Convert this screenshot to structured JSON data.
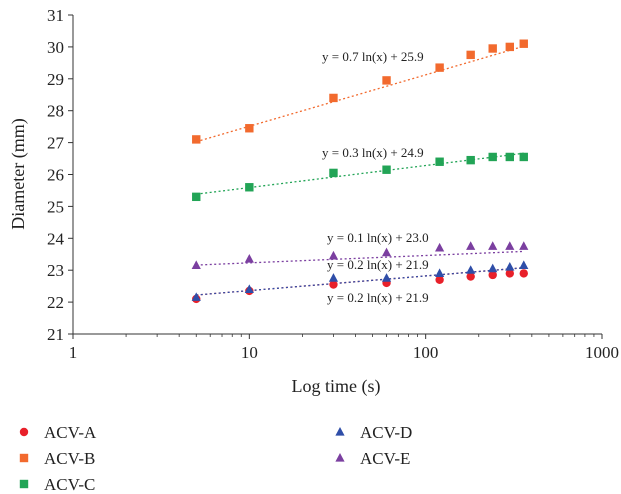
{
  "chart_data": {
    "type": "scatter",
    "title": "",
    "xlabel": "Log time (s)",
    "ylabel": "Diameter (mm)",
    "x_scale": "log",
    "xlim": [
      1,
      1000
    ],
    "ylim": [
      21,
      31
    ],
    "x_ticks": [
      "1",
      "10",
      "100",
      "1000"
    ],
    "y_ticks": [
      "21",
      "22",
      "23",
      "24",
      "25",
      "26",
      "27",
      "28",
      "29",
      "30",
      "31"
    ],
    "grid": false,
    "legend_position": "bottom",
    "series": [
      {
        "name": "ACV-A",
        "marker": "circle",
        "color": "#e8202a",
        "x": [
          5,
          10,
          30,
          60,
          120,
          180,
          240,
          300,
          360
        ],
        "y": [
          22.1,
          22.35,
          22.55,
          22.6,
          22.7,
          22.8,
          22.85,
          22.9,
          22.9
        ],
        "trend": {
          "a": 0.2,
          "b": 21.9,
          "label": "y = 0.2 ln(x) + 21.9"
        }
      },
      {
        "name": "ACV-B",
        "marker": "square",
        "color": "#f26a2e",
        "x": [
          5,
          10,
          30,
          60,
          120,
          180,
          240,
          300,
          360
        ],
        "y": [
          27.1,
          27.45,
          28.4,
          28.95,
          29.35,
          29.75,
          29.95,
          30.0,
          30.1
        ],
        "trend": {
          "a": 0.7,
          "b": 25.9,
          "label": "y = 0.7 ln(x) + 25.9"
        }
      },
      {
        "name": "ACV-C",
        "marker": "square",
        "color": "#22a456",
        "x": [
          5,
          10,
          30,
          60,
          120,
          180,
          240,
          300,
          360
        ],
        "y": [
          25.3,
          25.6,
          26.05,
          26.15,
          26.4,
          26.45,
          26.55,
          26.55,
          26.55
        ],
        "trend": {
          "a": 0.3,
          "b": 24.9,
          "label": "y = 0.3 ln(x) + 24.9"
        }
      },
      {
        "name": "ACV-D",
        "marker": "triangle",
        "color": "#2f4ea8",
        "x": [
          5,
          10,
          30,
          60,
          120,
          180,
          240,
          300,
          360
        ],
        "y": [
          22.15,
          22.4,
          22.75,
          22.75,
          22.9,
          23.0,
          23.05,
          23.1,
          23.15
        ],
        "trend": {
          "a": 0.2,
          "b": 21.9,
          "label": "y = 0.2 ln(x) + 21.9"
        }
      },
      {
        "name": "ACV-E",
        "marker": "triangle",
        "color": "#7b3fa0",
        "x": [
          5,
          10,
          30,
          60,
          120,
          180,
          240,
          300,
          360
        ],
        "y": [
          23.15,
          23.35,
          23.45,
          23.55,
          23.7,
          23.75,
          23.75,
          23.75,
          23.75
        ],
        "trend": {
          "a": 0.1,
          "b": 23.0,
          "label": "y = 0.1 ln(x) + 23.0"
        }
      }
    ]
  }
}
